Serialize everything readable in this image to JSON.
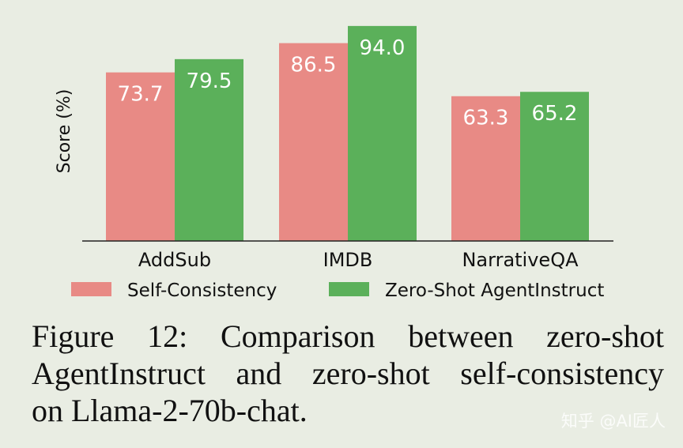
{
  "chart_data": {
    "type": "bar",
    "categories": [
      "AddSub",
      "IMDB",
      "NarrativeQA"
    ],
    "series": [
      {
        "name": "Self-Consistency",
        "values": [
          73.7,
          86.5,
          63.3
        ],
        "labels": [
          "73.7",
          "86.5",
          "63.3"
        ],
        "color": "#e88a85"
      },
      {
        "name": "Zero-Shot AgentInstruct",
        "values": [
          79.5,
          94.0,
          65.2
        ],
        "labels": [
          "79.5",
          "94.0",
          "65.2"
        ],
        "color": "#5bb05a"
      }
    ],
    "ylabel": "Score (%)",
    "xlabel": "",
    "title": "",
    "ylim": [
      0,
      100
    ],
    "y_ticks_shown": false,
    "grid": false,
    "legend_position": "bottom"
  },
  "caption": {
    "line1": "Figure 12:  Comparison between zero-shot",
    "line2": "AgentInstruct and zero-shot self-consistency",
    "line3": "on Llama-2-70b-chat."
  },
  "watermark": "知乎 @AI匠人"
}
